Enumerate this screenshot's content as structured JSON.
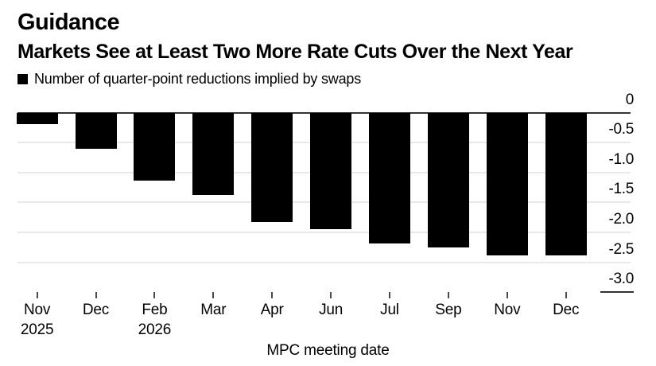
{
  "header": {
    "title": "Guidance",
    "subtitle": "Markets See at Least Two More Rate Cuts Over the Next Year"
  },
  "legend": {
    "label": "Number of quarter-point reductions implied by swaps",
    "marker": "black-square"
  },
  "chart_data": {
    "type": "bar",
    "title": "Guidance",
    "subtitle": "Markets See at Least Two More Rate Cuts Over the Next Year",
    "series_label": "Number of quarter-point reductions implied by swaps",
    "categories": [
      "Nov",
      "Dec",
      "Feb",
      "Mar",
      "Apr",
      "Jun",
      "Jul",
      "Sep",
      "Nov",
      "Dec"
    ],
    "category_years": [
      "2025",
      "",
      "2026",
      "",
      "",
      "",
      "",
      "",
      "",
      ""
    ],
    "values": [
      -0.19,
      -0.61,
      -1.14,
      -1.38,
      -1.82,
      -1.94,
      -2.19,
      -2.25,
      -2.38,
      -2.38
    ],
    "xlabel": "MPC meeting date",
    "ylabel": "",
    "ylim": [
      -3.0,
      0
    ],
    "yticks": [
      0,
      -0.5,
      -1.0,
      -1.5,
      -2.0,
      -2.5,
      -3.0
    ],
    "ytick_labels": [
      "0",
      "-0.5",
      "-1.0",
      "-1.5",
      "-2.0",
      "-2.5",
      "-3.0"
    ],
    "grid": "horizontal",
    "legend_position": "top-left",
    "bar_orientation": "vertical-negative",
    "colors": {
      "bar": "#000000",
      "grid": "#e9e9e9",
      "zero_line": "#333333",
      "tick": "#4a4a4a",
      "text": "#000000",
      "background": "#ffffff"
    }
  }
}
